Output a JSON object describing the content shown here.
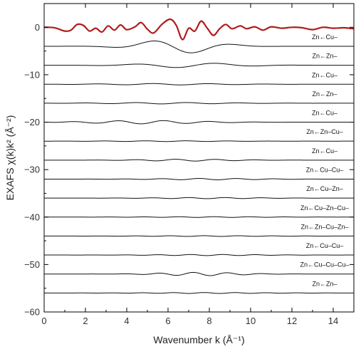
{
  "chart_data": {
    "type": "line",
    "title": "",
    "xlabel": "Wavenumber k (Å⁻¹)",
    "ylabel": "EXAFS χ(k)k² (Å⁻²)",
    "xlim": [
      0,
      15
    ],
    "ylim": [
      -60,
      5
    ],
    "x_ticks": [
      0,
      2,
      4,
      6,
      8,
      10,
      12,
      14
    ],
    "y_ticks": [
      0,
      -10,
      -20,
      -30,
      -40,
      -50,
      -60
    ],
    "grid": false,
    "legend": "none",
    "colors": {
      "total": "#b01c1c",
      "paths": "#111111",
      "frame": "#000000"
    },
    "total": {
      "color": "#b01c1c",
      "points": [
        [
          0,
          0
        ],
        [
          0.5,
          -0.1
        ],
        [
          1.0,
          -0.8
        ],
        [
          1.3,
          -0.6
        ],
        [
          1.6,
          0.6
        ],
        [
          1.9,
          0.4
        ],
        [
          2.2,
          -0.8
        ],
        [
          2.5,
          -0.2
        ],
        [
          2.8,
          -1.0
        ],
        [
          3.1,
          0.3
        ],
        [
          3.4,
          -0.6
        ],
        [
          3.7,
          0.5
        ],
        [
          4.0,
          -0.5
        ],
        [
          4.4,
          0.1
        ],
        [
          4.7,
          1.0
        ],
        [
          5.0,
          -0.4
        ],
        [
          5.3,
          -1.2
        ],
        [
          5.7,
          0.6
        ],
        [
          6.1,
          1.7
        ],
        [
          6.4,
          0.4
        ],
        [
          6.7,
          -2.6
        ],
        [
          7.0,
          -0.2
        ],
        [
          7.3,
          -0.8
        ],
        [
          7.6,
          1.3
        ],
        [
          7.9,
          -0.2
        ],
        [
          8.2,
          -1.7
        ],
        [
          8.5,
          -0.3
        ],
        [
          8.8,
          0.6
        ],
        [
          9.1,
          -0.3
        ],
        [
          9.5,
          0.3
        ],
        [
          9.8,
          -0.3
        ],
        [
          10.2,
          0.1
        ],
        [
          10.6,
          -0.6
        ],
        [
          11.0,
          0.1
        ],
        [
          11.5,
          -0.2
        ],
        [
          12.0,
          0.0
        ],
        [
          12.5,
          -0.1
        ],
        [
          13.0,
          -0.5
        ],
        [
          13.5,
          0.0
        ],
        [
          14.0,
          -0.2
        ],
        [
          14.5,
          -0.1
        ],
        [
          15.0,
          -0.3
        ]
      ]
    },
    "paths": [
      {
        "label": "Zn←Cu–",
        "baseline": -4,
        "amplitude": 1.5,
        "frequency": 1.45,
        "center": 6.5,
        "width": 2.3
      },
      {
        "label": "Zn←Zn–",
        "baseline": -8,
        "amplitude": 0.5,
        "frequency": 1.5,
        "center": 7.0,
        "width": 3.0
      },
      {
        "label": "Zn←Cu–",
        "baseline": -12,
        "amplitude": 0.15,
        "frequency": 2.2,
        "center": 6.0,
        "width": 4.0
      },
      {
        "label": "Zn←Zn–",
        "baseline": -16,
        "amplitude": 0.15,
        "frequency": 2.4,
        "center": 6.0,
        "width": 4.0
      },
      {
        "label": "Zn←Cu–",
        "baseline": -20,
        "amplitude": 0.35,
        "frequency": 2.7,
        "center": 5.0,
        "width": 3.5
      },
      {
        "label": "Zn←Zn–Cu–",
        "baseline": -24,
        "amplitude": 0.08,
        "frequency": 3.0,
        "center": 6.0,
        "width": 4.0
      },
      {
        "label": "Zn←Cu–",
        "baseline": -28,
        "amplitude": 0.2,
        "frequency": 3.1,
        "center": 7.0,
        "width": 3.0
      },
      {
        "label": "Zn←Cu–Cu–",
        "baseline": -32,
        "amplitude": 0.15,
        "frequency": 3.3,
        "center": 8.0,
        "width": 3.5
      },
      {
        "label": "Zn←Cu–Zn–",
        "baseline": -36,
        "amplitude": 0.12,
        "frequency": 3.4,
        "center": 8.0,
        "width": 3.5
      },
      {
        "label": "Zn←Cu–Zn–Cu–",
        "baseline": -40,
        "amplitude": 0.08,
        "frequency": 3.5,
        "center": 8.0,
        "width": 4.0
      },
      {
        "label": "Zn←Zn–Cu–Zn–",
        "baseline": -44,
        "amplitude": 0.08,
        "frequency": 3.6,
        "center": 8.0,
        "width": 4.0
      },
      {
        "label": "Zn←Cu–Cu–",
        "baseline": -48,
        "amplitude": 0.12,
        "frequency": 3.8,
        "center": 8.0,
        "width": 3.5
      },
      {
        "label": "Zn←Cu–Cu–Cu–",
        "baseline": -52,
        "amplitude": 0.35,
        "frequency": 3.6,
        "center": 7.6,
        "width": 2.5
      },
      {
        "label": "Zn←Zn–",
        "baseline": -56,
        "amplitude": 0.1,
        "frequency": 4.0,
        "center": 8.0,
        "width": 4.0
      }
    ]
  }
}
